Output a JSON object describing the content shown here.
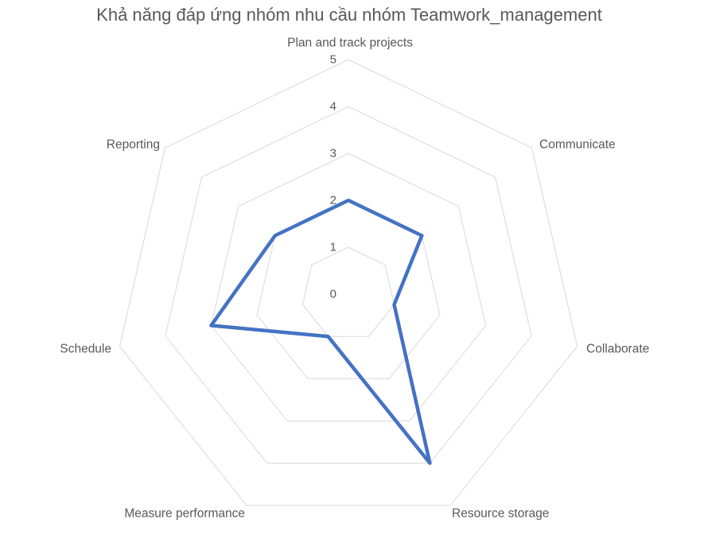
{
  "title": "Khả năng đáp ứng nhóm nhu cầu nhóm Teamwork_management",
  "colors": {
    "background": "#FFFFFF",
    "series_line": "#4472C4",
    "gridline": "#D9D9D9",
    "label_text": "#595959",
    "title_text": "#595959"
  },
  "chart_data": {
    "type": "radar",
    "title": "Khả năng đáp ứng nhóm nhu cầu nhóm Teamwork_management",
    "categories": [
      "Plan and track projects",
      "Communicate",
      "Collaborate",
      "Resource storage",
      "Measure performance",
      "Schedule",
      "Reporting"
    ],
    "series": [
      {
        "values": [
          2,
          2,
          1,
          4,
          1,
          3,
          2
        ],
        "color": "#4472C4",
        "fill": "none"
      }
    ],
    "axis": {
      "min": 0,
      "max": 5,
      "ticks": [
        0,
        1,
        2,
        3,
        4,
        5
      ]
    },
    "grid": true,
    "spokes": false,
    "legend_position": "none"
  }
}
